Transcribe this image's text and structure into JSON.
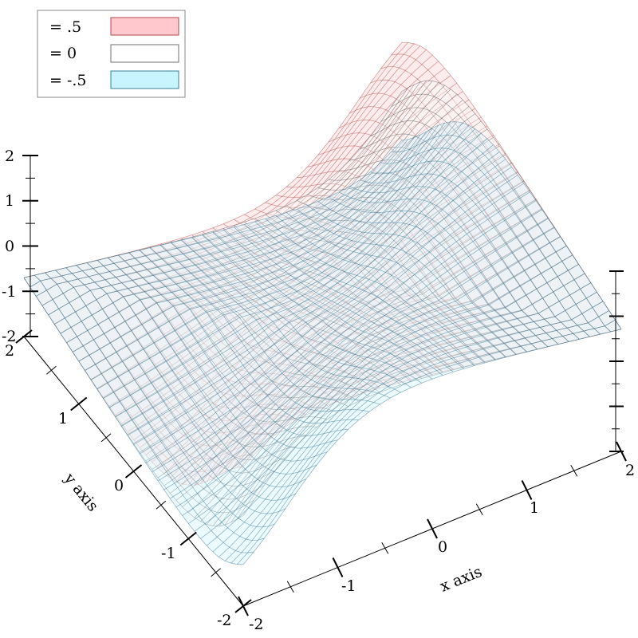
{
  "chart_data": {
    "type": "isosurface-3d",
    "function": "hyperbolic isosurfaces (saddle-like sheets)",
    "legend": [
      {
        "label": "= .5",
        "fill": "#ffc8c8",
        "stroke": "#b04040"
      },
      {
        "label": "= 0",
        "fill": "#ffffff",
        "stroke": "#555555"
      },
      {
        "label": "= -.5",
        "fill": "#c8f4ff",
        "stroke": "#2a6f8f"
      }
    ],
    "x_axis": {
      "label": "x axis",
      "range": [
        -2,
        2
      ],
      "ticks": [
        "-2",
        "-1",
        "0",
        "1",
        "2"
      ]
    },
    "y_axis": {
      "label": "y axis",
      "range": [
        -2,
        2
      ],
      "ticks": [
        "-2",
        "-1",
        "0",
        "1",
        "2"
      ]
    },
    "z_axis": {
      "label": "",
      "range": [
        -2,
        2
      ],
      "ticks": [
        "-2",
        "-1",
        "0",
        "1",
        "2"
      ]
    },
    "levels": [
      0.5,
      0,
      -0.5
    ]
  }
}
